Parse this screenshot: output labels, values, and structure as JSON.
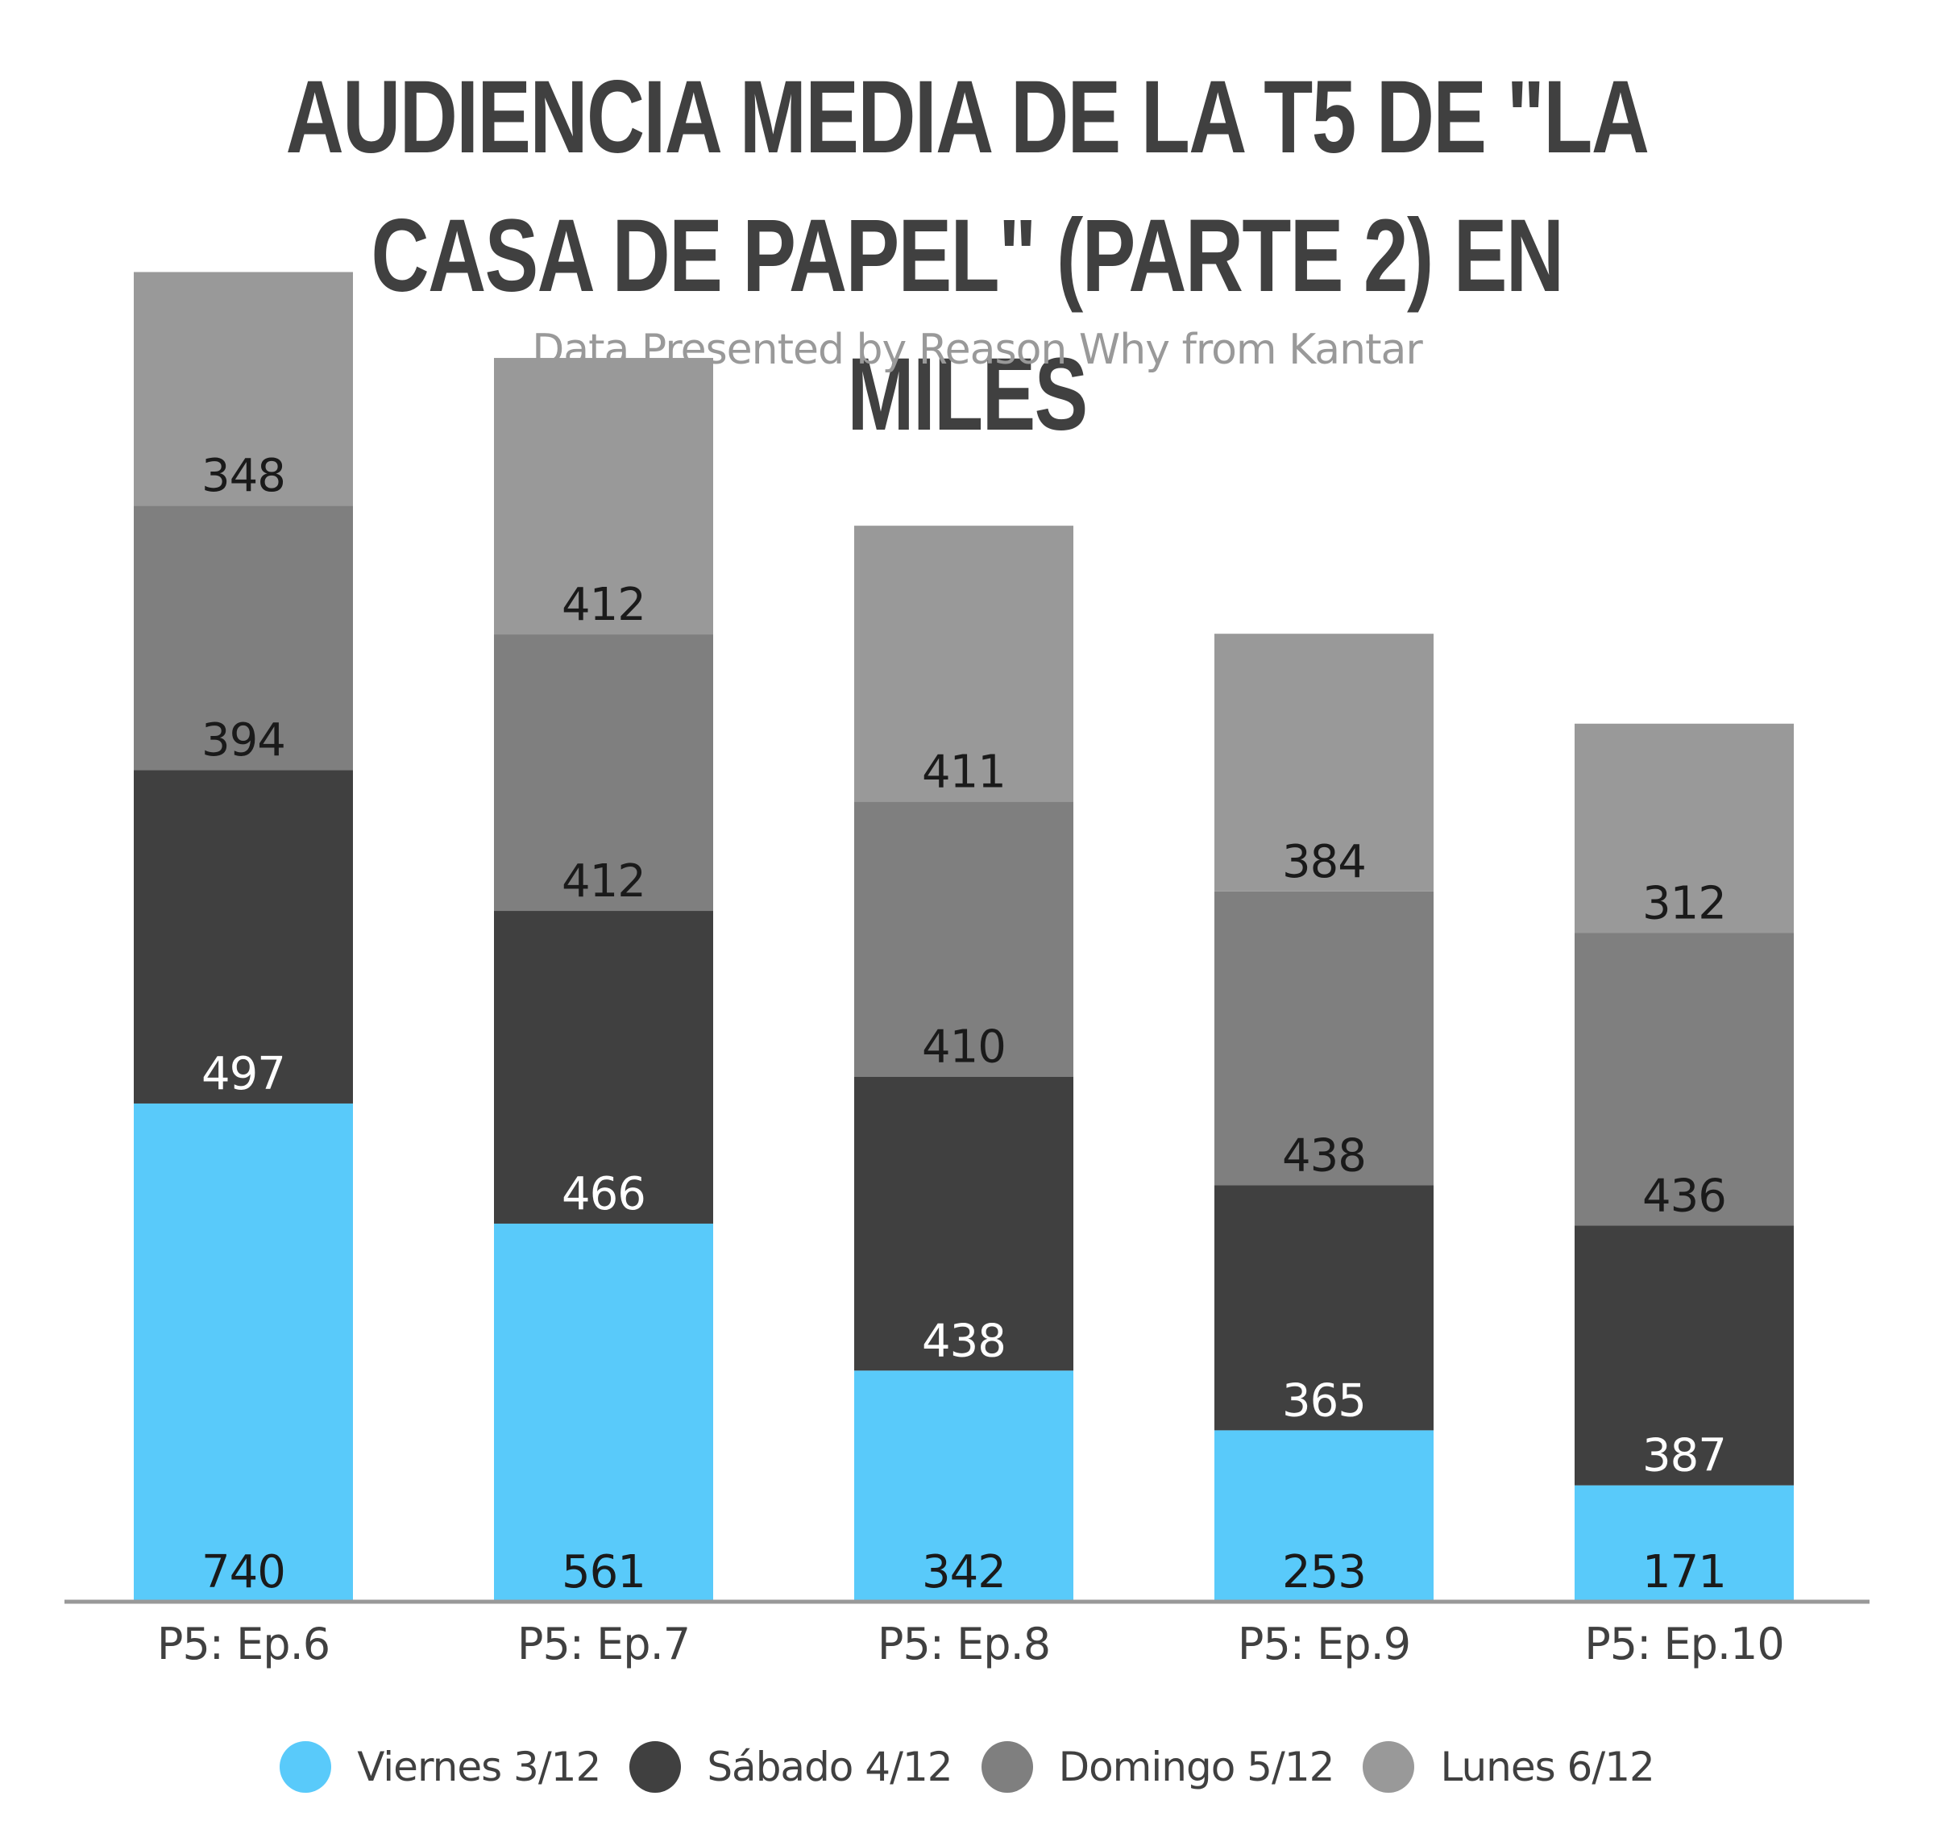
{
  "chart_data": {
    "type": "bar",
    "stacked": true,
    "title": "AUDIENCIA MEDIA DE LA T5 DE \"LA CASA DE PAPEL\" (PARTE 2) EN MILES",
    "subtitle": "_Data Presented by Reason Why from Kantar",
    "categories": [
      "P5: Ep.6",
      "P5: Ep.7",
      "P5: Ep.8",
      "P5: Ep.9",
      "P5: Ep.10"
    ],
    "series": [
      {
        "name": "Viernes 3/12",
        "color": "#59CAFA",
        "label_color": "#1a1a1a",
        "values": [
          740,
          561,
          342,
          253,
          171
        ]
      },
      {
        "name": "Sábado 4/12",
        "color": "#404040",
        "label_color": "#ffffff",
        "values": [
          497,
          466,
          438,
          365,
          387
        ]
      },
      {
        "name": "Domingo 5/12",
        "color": "#7F7F7F",
        "label_color": "#1a1a1a",
        "values": [
          394,
          412,
          410,
          438,
          436
        ]
      },
      {
        "name": "Lunes 6/12",
        "color": "#999999",
        "label_color": "#1a1a1a",
        "values": [
          348,
          412,
          411,
          384,
          312
        ]
      }
    ],
    "ylim": [
      0,
      2000
    ],
    "grid": false,
    "legend_position": "bottom",
    "axis_color": "#999999"
  }
}
